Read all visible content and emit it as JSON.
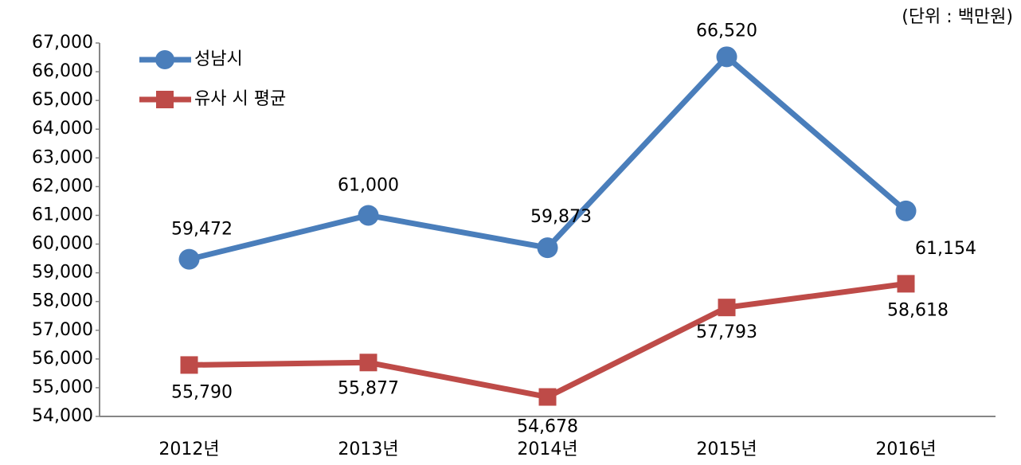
{
  "chart_data": {
    "type": "line",
    "annotation": "(단위 : 백만원)",
    "categories": [
      "2012년",
      "2013년",
      "2014년",
      "2015년",
      "2016년"
    ],
    "series": [
      {
        "name": "성남시",
        "color": "#4a7ebb",
        "marker": "circle",
        "values": [
          59472,
          61000,
          59873,
          66520,
          61154
        ],
        "value_labels": [
          "59,472",
          "61,000",
          "59,873",
          "66,520",
          "61,154"
        ]
      },
      {
        "name": "유사 시 평균",
        "color": "#be4b48",
        "marker": "square",
        "values": [
          55790,
          55877,
          54678,
          57793,
          58618
        ],
        "value_labels": [
          "55,790",
          "55,877",
          "54,678",
          "57,793",
          "58,618"
        ]
      }
    ],
    "ylim": [
      54000,
      67000
    ],
    "yticks": [
      {
        "value": 54000,
        "label": "54,000"
      },
      {
        "value": 55000,
        "label": "55,000"
      },
      {
        "value": 56000,
        "label": "56,000"
      },
      {
        "value": 57000,
        "label": "57,000"
      },
      {
        "value": 58000,
        "label": "58,000"
      },
      {
        "value": 59000,
        "label": "59,000"
      },
      {
        "value": 60000,
        "label": "60,000"
      },
      {
        "value": 61000,
        "label": "61,000"
      },
      {
        "value": 62000,
        "label": "62,000"
      },
      {
        "value": 63000,
        "label": "63,000"
      },
      {
        "value": 64000,
        "label": "64,000"
      },
      {
        "value": 65000,
        "label": "65,000"
      },
      {
        "value": 66000,
        "label": "66,000"
      },
      {
        "value": 67000,
        "label": "67,000"
      }
    ],
    "grid": false,
    "legend": "upper left"
  }
}
